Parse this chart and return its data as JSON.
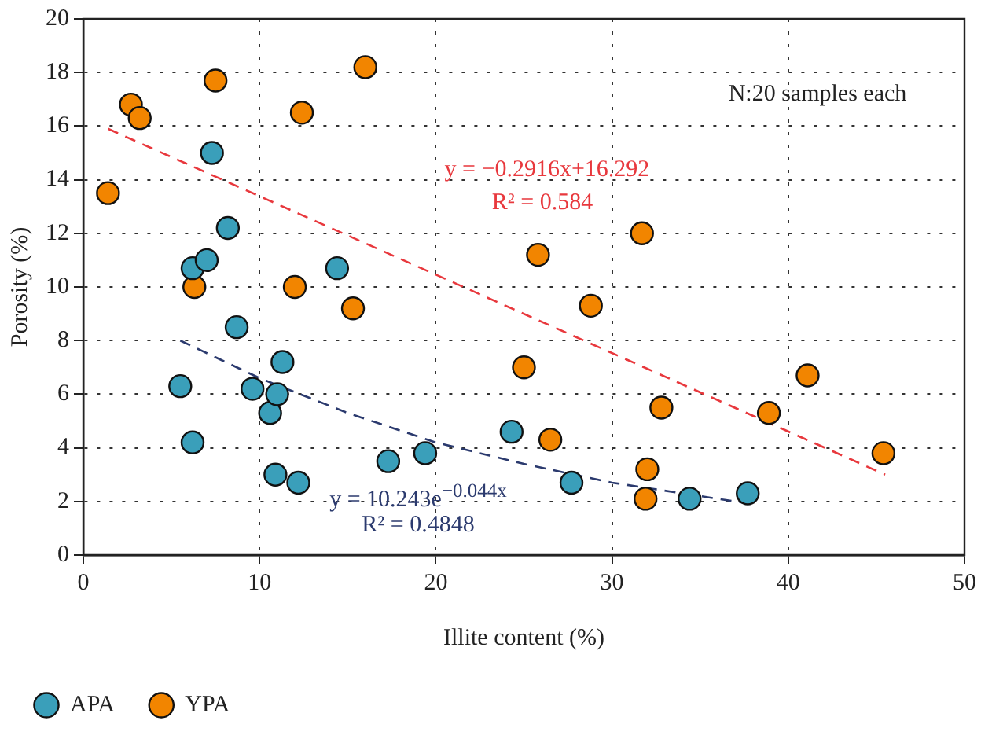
{
  "chart_data": {
    "type": "scatter",
    "xlabel": "Illite content (%)",
    "ylabel": "Porosity (%)",
    "xlim": [
      0,
      50
    ],
    "xticks": [
      0,
      10,
      20,
      30,
      40,
      50
    ],
    "ylim": [
      0,
      20
    ],
    "yticks": [
      0,
      2,
      4,
      6,
      8,
      10,
      12,
      14,
      16,
      18,
      20
    ],
    "grid": true,
    "legend": "bottom left",
    "marker": "circle",
    "series": [
      {
        "name": "APA",
        "color": "#3a9fba",
        "x": [
          5.5,
          6.2,
          6.2,
          7.0,
          7.3,
          8.2,
          8.7,
          9.6,
          10.6,
          10.9,
          11.0,
          11.3,
          12.2,
          14.4,
          17.3,
          19.4,
          24.3,
          27.7,
          34.4,
          37.7
        ],
        "values": [
          6.3,
          4.2,
          10.7,
          11.0,
          15.0,
          12.2,
          8.5,
          6.2,
          5.3,
          3.0,
          6.0,
          7.2,
          2.7,
          10.7,
          3.5,
          3.8,
          4.6,
          2.7,
          2.1,
          2.3
        ]
      },
      {
        "name": "YPA",
        "color": "#f28500",
        "x": [
          1.4,
          2.7,
          3.2,
          6.3,
          7.5,
          12.0,
          12.4,
          15.3,
          16.0,
          25.0,
          25.8,
          26.5,
          28.8,
          31.7,
          32.0,
          31.9,
          32.8,
          38.9,
          41.1,
          45.4
        ],
        "values": [
          13.5,
          16.8,
          16.3,
          10.0,
          17.7,
          10.0,
          16.5,
          9.2,
          18.2,
          7.0,
          11.2,
          4.3,
          9.3,
          12.0,
          3.2,
          2.1,
          5.5,
          5.3,
          6.7,
          3.8
        ]
      },
      {
        "type": "line",
        "color": "#e8383d",
        "line_style": "dashed",
        "marker": "none",
        "x": [
          1.4,
          45.5
        ],
        "values": [
          15.9,
          3.0
        ]
      },
      {
        "type": "line",
        "color": "#2b3a6e",
        "line_style": "dashed",
        "marker": "none",
        "x": [
          5.5,
          10,
          15,
          20,
          25,
          30,
          38
        ],
        "values": [
          8.0,
          6.6,
          5.3,
          4.2,
          3.4,
          2.7,
          1.9
        ]
      }
    ],
    "annotations": [
      "y = −0.2916x+16.292",
      "R² = 0.584",
      "y = 10.243e$^{−0.044x}$",
      "R² = 0.4848",
      "N:20 samples each"
    ]
  }
}
